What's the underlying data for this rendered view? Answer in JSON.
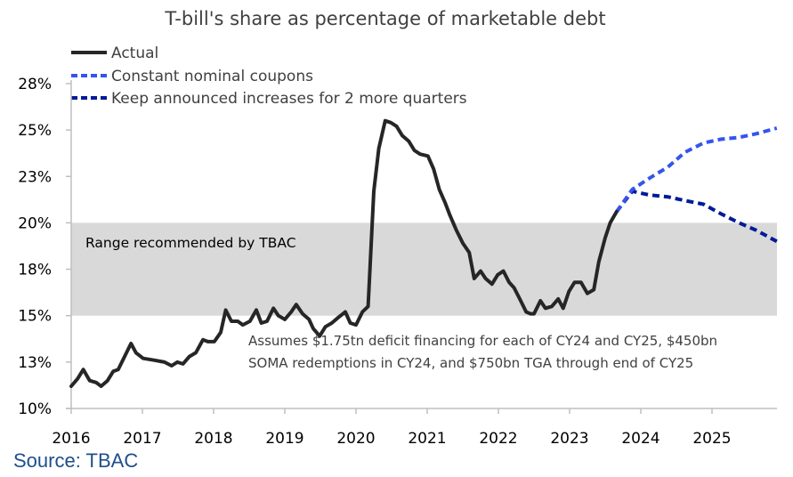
{
  "chart_data": {
    "type": "line",
    "title": "T-bill's share as percentage of marketable debt",
    "xlabel": "",
    "ylabel": "",
    "xlim": [
      2016,
      2026
    ],
    "ylim": [
      10,
      27.5
    ],
    "x_ticks": [
      2016,
      2017,
      2018,
      2019,
      2020,
      2021,
      2022,
      2023,
      2024,
      2025
    ],
    "x_tick_labels": [
      "2016",
      "2017",
      "2018",
      "2019",
      "2020",
      "2021",
      "2022",
      "2023",
      "2024",
      "2025"
    ],
    "y_ticks": [
      10,
      12.5,
      15,
      17.5,
      20,
      22.5,
      25,
      27.5
    ],
    "y_tick_labels": [
      "10%",
      "13%",
      "15%",
      "18%",
      "20%",
      "23%",
      "25%",
      "28%"
    ],
    "grid": false,
    "legend_position": "top-left",
    "shaded_band": {
      "label": "Range recommended by TBAC",
      "y_range": [
        15,
        20
      ],
      "color": "#d9d9d9"
    },
    "annotation": [
      "Assumes $1.75tn deficit financing for each of CY24 and CY25, $450bn",
      "SOMA redemptions in CY24, and $750bn TGA through end of CY25"
    ],
    "series": [
      {
        "name": "Actual",
        "color": "#262626",
        "style": "solid",
        "x": [
          2016.0,
          2016.09,
          2016.17,
          2016.26,
          2016.35,
          2016.42,
          2016.51,
          2016.59,
          2016.66,
          2016.75,
          2016.84,
          2016.91,
          2017.01,
          2017.17,
          2017.31,
          2017.41,
          2017.49,
          2017.57,
          2017.66,
          2017.75,
          2017.85,
          2017.92,
          2018.01,
          2018.1,
          2018.17,
          2018.25,
          2018.34,
          2018.41,
          2018.51,
          2018.6,
          2018.67,
          2018.75,
          2018.84,
          2018.91,
          2019.0,
          2019.09,
          2019.16,
          2019.25,
          2019.34,
          2019.4,
          2019.49,
          2019.57,
          2019.66,
          2019.75,
          2019.85,
          2019.92,
          2020.0,
          2020.09,
          2020.17,
          2020.25,
          2020.32,
          2020.41,
          2020.49,
          2020.57,
          2020.65,
          2020.74,
          2020.82,
          2020.9,
          2021.01,
          2021.09,
          2021.17,
          2021.25,
          2021.32,
          2021.41,
          2021.5,
          2021.59,
          2021.66,
          2021.75,
          2021.82,
          2021.91,
          2021.99,
          2022.07,
          2022.15,
          2022.22,
          2022.3,
          2022.39,
          2022.45,
          2022.5,
          2022.59,
          2022.66,
          2022.75,
          2022.84,
          2022.91,
          2022.99,
          2023.07,
          2023.16,
          2023.25,
          2023.34,
          2023.41,
          2023.5,
          2023.57,
          2023.66
        ],
        "values": [
          11.2,
          11.6,
          12.1,
          11.5,
          11.4,
          11.2,
          11.5,
          12.0,
          12.1,
          12.8,
          13.5,
          13.0,
          12.7,
          12.6,
          12.5,
          12.3,
          12.5,
          12.4,
          12.8,
          13.0,
          13.7,
          13.6,
          13.6,
          14.1,
          15.3,
          14.7,
          14.7,
          14.5,
          14.7,
          15.3,
          14.6,
          14.7,
          15.4,
          15.0,
          14.8,
          15.2,
          15.6,
          15.1,
          14.8,
          14.3,
          13.9,
          14.4,
          14.6,
          14.9,
          15.2,
          14.6,
          14.5,
          15.2,
          15.5,
          21.7,
          24.0,
          25.5,
          25.4,
          25.2,
          24.7,
          24.4,
          23.9,
          23.7,
          23.6,
          22.9,
          21.8,
          21.1,
          20.4,
          19.6,
          18.9,
          18.4,
          17.0,
          17.4,
          17.0,
          16.7,
          17.2,
          17.4,
          16.8,
          16.5,
          15.9,
          15.2,
          15.1,
          15.1,
          15.8,
          15.4,
          15.5,
          15.9,
          15.4,
          16.3,
          16.8,
          16.8,
          16.2,
          16.4,
          17.9,
          19.2,
          20.0,
          20.6
        ]
      },
      {
        "name": "Constant nominal coupons",
        "color": "#3355ee",
        "style": "dashed",
        "x": [
          2023.66,
          2023.88,
          2024.12,
          2024.38,
          2024.62,
          2024.88,
          2025.12,
          2025.38,
          2025.62,
          2025.91
        ],
        "values": [
          20.6,
          21.8,
          22.4,
          23.0,
          23.8,
          24.3,
          24.5,
          24.6,
          24.8,
          25.1
        ]
      },
      {
        "name": "Keep announced increases for 2 more quarters",
        "color": "#001a99",
        "style": "dashed",
        "x": [
          2023.66,
          2023.88,
          2024.12,
          2024.38,
          2024.62,
          2024.88,
          2025.12,
          2025.38,
          2025.62,
          2025.91
        ],
        "values": [
          20.6,
          21.7,
          21.5,
          21.4,
          21.2,
          21.0,
          20.5,
          20.0,
          19.6,
          19.0
        ]
      }
    ]
  },
  "source": "Source: TBAC"
}
